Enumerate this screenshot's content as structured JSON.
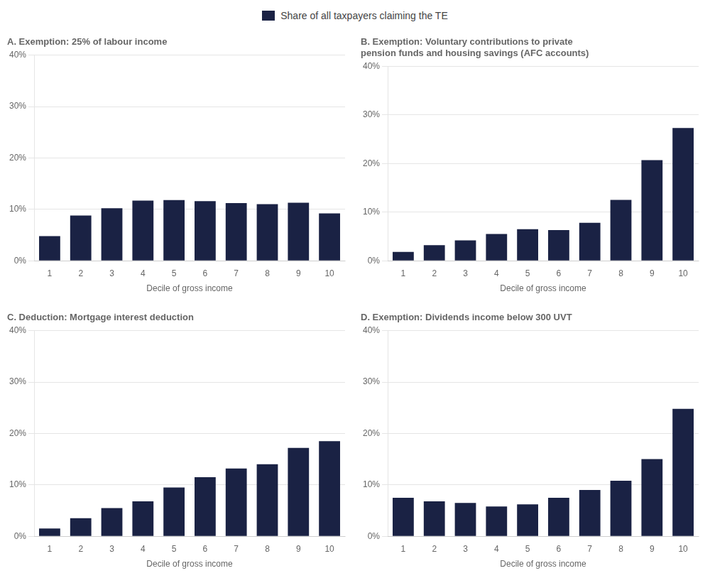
{
  "chart_data": [
    {
      "type": "bar",
      "title": "A. Exemption: 25% of labour income",
      "categories": [
        "1",
        "2",
        "3",
        "4",
        "5",
        "6",
        "7",
        "8",
        "9",
        "10"
      ],
      "series": [
        {
          "name": "Share of all taxpayers claiming the TE",
          "color": "#1a2244",
          "values": [
            0.048,
            0.088,
            0.102,
            0.117,
            0.118,
            0.116,
            0.112,
            0.11,
            0.113,
            0.092
          ]
        }
      ],
      "xlabel": "Decile of gross income",
      "ylim": [
        0,
        0.4
      ],
      "yticks": [
        {
          "value": 0,
          "label": "0%"
        },
        {
          "value": 0.1,
          "label": "10%"
        },
        {
          "value": 0.2,
          "label": "20%"
        },
        {
          "value": 0.3,
          "label": "30%"
        },
        {
          "value": 0.4,
          "label": "40%"
        }
      ],
      "grid": true,
      "legend": "top"
    },
    {
      "type": "bar",
      "title": "B. Exemption: Voluntary contributions to private\npension funds and housing savings (AFC accounts)",
      "categories": [
        "1",
        "2",
        "3",
        "4",
        "5",
        "6",
        "7",
        "8",
        "9",
        "10"
      ],
      "series": [
        {
          "name": "Share of all taxpayers claiming the TE",
          "color": "#1a2244",
          "values": [
            0.018,
            0.032,
            0.042,
            0.055,
            0.065,
            0.063,
            0.078,
            0.125,
            0.207,
            0.273
          ]
        }
      ],
      "xlabel": "Decile of gross income",
      "ylim": [
        0,
        0.4
      ],
      "yticks": [
        {
          "value": 0,
          "label": "0%"
        },
        {
          "value": 0.1,
          "label": "10%"
        },
        {
          "value": 0.2,
          "label": "20%"
        },
        {
          "value": 0.3,
          "label": "30%"
        },
        {
          "value": 0.4,
          "label": "40%"
        }
      ],
      "grid": true,
      "legend": "top"
    },
    {
      "type": "bar",
      "title": "C. Deduction: Mortgage interest deduction",
      "categories": [
        "1",
        "2",
        "3",
        "4",
        "5",
        "6",
        "7",
        "8",
        "9",
        "10"
      ],
      "series": [
        {
          "name": "Share of all taxpayers claiming the TE",
          "color": "#1a2244",
          "values": [
            0.015,
            0.035,
            0.055,
            0.068,
            0.095,
            0.115,
            0.132,
            0.14,
            0.172,
            0.185
          ]
        }
      ],
      "xlabel": "Decile of gross income",
      "ylim": [
        0,
        0.4
      ],
      "yticks": [
        {
          "value": 0,
          "label": "0%"
        },
        {
          "value": 0.1,
          "label": "10%"
        },
        {
          "value": 0.2,
          "label": "20%"
        },
        {
          "value": 0.3,
          "label": "30%"
        },
        {
          "value": 0.4,
          "label": "40%"
        }
      ],
      "grid": true,
      "legend": "top"
    },
    {
      "type": "bar",
      "title": "D. Exemption: Dividends income below 300 UVT",
      "categories": [
        "1",
        "2",
        "3",
        "4",
        "5",
        "6",
        "7",
        "8",
        "9",
        "10"
      ],
      "series": [
        {
          "name": "Share of all taxpayers claiming the TE",
          "color": "#1a2244",
          "values": [
            0.075,
            0.068,
            0.065,
            0.058,
            0.062,
            0.075,
            0.09,
            0.108,
            0.15,
            0.248
          ]
        }
      ],
      "xlabel": "Decile of gross income",
      "ylim": [
        0,
        0.4
      ],
      "yticks": [
        {
          "value": 0,
          "label": "0%"
        },
        {
          "value": 0.1,
          "label": "10%"
        },
        {
          "value": 0.2,
          "label": "20%"
        },
        {
          "value": 0.3,
          "label": "30%"
        },
        {
          "value": 0.4,
          "label": "40%"
        }
      ],
      "grid": true,
      "legend": "top"
    }
  ]
}
